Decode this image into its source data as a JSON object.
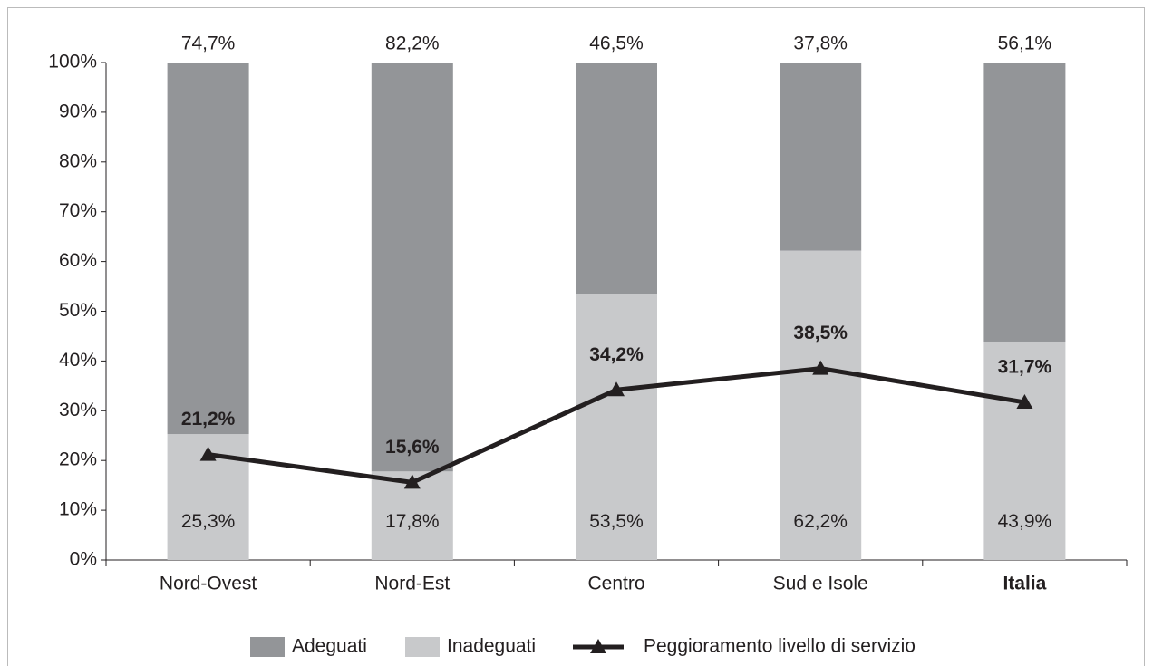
{
  "chart_data": {
    "type": "bar",
    "stacked": true,
    "categories": [
      "Nord-Ovest",
      "Nord-Est",
      "Centro",
      "Sud e Isole",
      "Italia"
    ],
    "series": [
      {
        "name": "Inadeguati",
        "color": "#c8c9cb",
        "values": [
          25.3,
          17.8,
          53.5,
          62.2,
          43.9
        ],
        "value_labels": [
          "25,3%",
          "17,8%",
          "53,5%",
          "62,2%",
          "43,9%"
        ]
      },
      {
        "name": "Adeguati",
        "color": "#939598",
        "values": [
          74.7,
          82.2,
          46.5,
          37.8,
          56.1
        ],
        "value_labels": [
          "74,7%",
          "82,2%",
          "46,5%",
          "37,8%",
          "56,1%"
        ]
      },
      {
        "name": "Peggioramento livello di servizio",
        "type": "line",
        "color": "#231f20",
        "values": [
          21.2,
          15.6,
          34.2,
          38.5,
          31.7
        ],
        "value_labels": [
          "21,2%",
          "15,6%",
          "34,2%",
          "38,5%",
          "31,7%"
        ]
      }
    ],
    "ylim": [
      0,
      100
    ],
    "yticks": [
      {
        "value": 0,
        "label": "0%"
      },
      {
        "value": 10,
        "label": "10%"
      },
      {
        "value": 20,
        "label": "20%"
      },
      {
        "value": 30,
        "label": "30%"
      },
      {
        "value": 40,
        "label": "40%"
      },
      {
        "value": 50,
        "label": "50%"
      },
      {
        "value": 60,
        "label": "60%"
      },
      {
        "value": 70,
        "label": "70%"
      },
      {
        "value": 80,
        "label": "80%"
      },
      {
        "value": 90,
        "label": "90%"
      },
      {
        "value": 100,
        "label": "100%"
      }
    ],
    "grid": false
  }
}
